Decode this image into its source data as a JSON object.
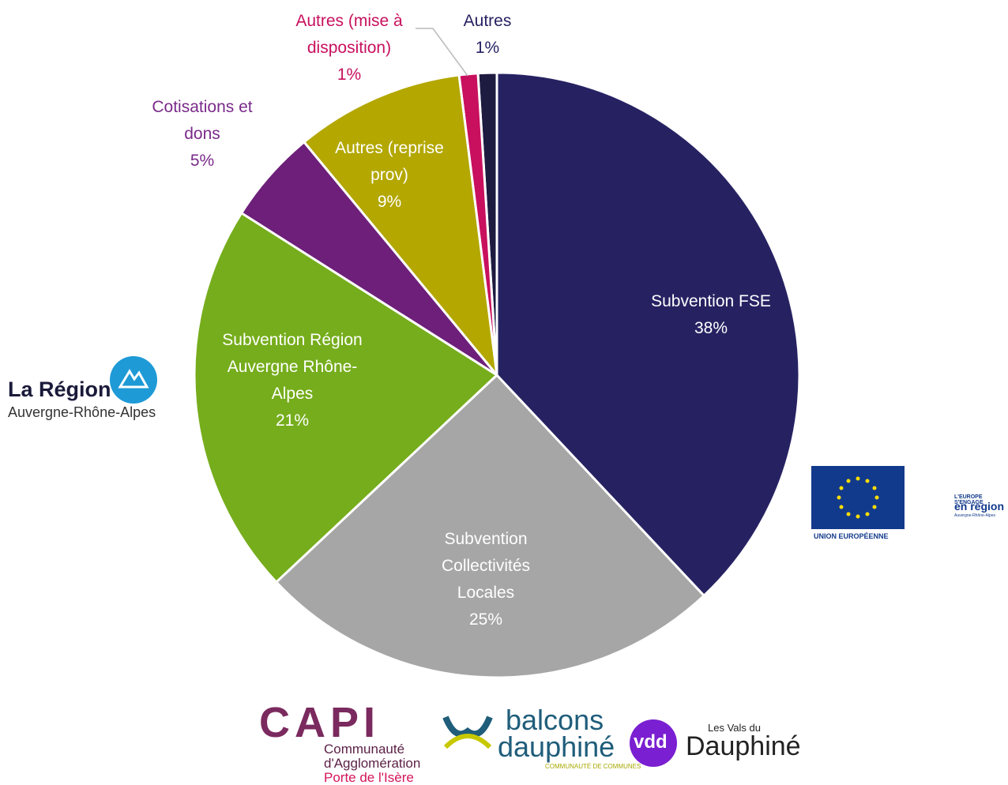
{
  "chart_data": {
    "type": "pie",
    "categories": [
      "Subvention FSE",
      "Subvention Collectivités Locales",
      "Subvention Région Auvergne Rhône-Alpes",
      "Cotisations et dons",
      "Autres (reprise prov)",
      "Autres (mise à disposition)",
      "Autres"
    ],
    "values": [
      38,
      25,
      21,
      5,
      9,
      1,
      1
    ],
    "value_labels": [
      "38%",
      "25%",
      "21%",
      "5%",
      "9%",
      "1%",
      "1%"
    ],
    "colors": [
      "#262262",
      "#a6a6a6",
      "#76ad1c",
      "#6d1f7a",
      "#b3a700",
      "#c8105e",
      "#1d1b40"
    ],
    "label_colors": [
      "#ffffff",
      "#ffffff",
      "#ffffff",
      "#7a2a8a",
      "#ffffff",
      "#c8105e",
      "#262262"
    ]
  },
  "logos": {
    "region": {
      "name": "La Région",
      "sub": "Auvergne-Rhône-Alpes"
    },
    "eu": {
      "name": "UNION EUROPÉENNE",
      "line1": "L'EUROPE S'ENGAGE",
      "line2": "en region",
      "line3": "Auvergne-Rhône-Alpes"
    },
    "capi": {
      "name": "CAPI",
      "line1": "Communauté",
      "line2": "d'Agglomération",
      "line3": "Porte de l'Isère"
    },
    "balcons": {
      "line1": "balcons",
      "line2": "dauphiné",
      "line3": "COMMUNAUTÉ DE COMMUNES"
    },
    "vdd": {
      "mark": "vdd",
      "line1": "Les Vals du",
      "line2": "Dauphiné"
    }
  }
}
